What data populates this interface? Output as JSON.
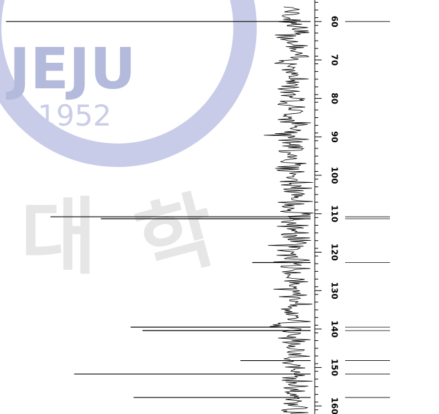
{
  "watermark": {
    "name": "JEJU",
    "year": "1952",
    "characters": [
      "대",
      "학"
    ]
  },
  "chart_data": {
    "type": "spectrum",
    "x": [
      60.0,
      110.8,
      111.3,
      122.7,
      139.5,
      140.4,
      148.2,
      151.7,
      157.8
    ],
    "values": [
      98,
      83,
      66,
      15,
      56,
      52,
      19,
      75,
      55
    ],
    "xlim": [
      54.4,
      162.1
    ],
    "xticks": [
      60,
      70,
      80,
      90,
      100,
      110,
      120,
      130,
      140,
      150,
      160
    ],
    "ylim": [
      0,
      100
    ],
    "color": "#000000"
  }
}
